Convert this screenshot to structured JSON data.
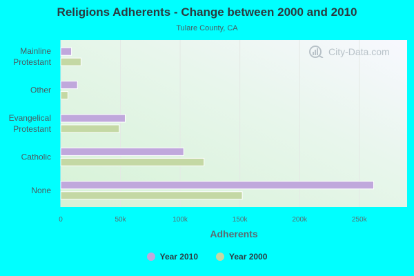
{
  "colors": {
    "background": "#00ffff",
    "series_2010": "#c0a8dc",
    "series_2000": "#c4d8a4",
    "grid": "#e4e8e4"
  },
  "watermark": {
    "text": "City-Data.com",
    "icon": "city-data-logo-icon"
  },
  "chart_data": {
    "type": "bar",
    "orientation": "horizontal",
    "title": "Religions Adherents - Change between 2000 and 2010",
    "subtitle": "Tulare County, CA",
    "xlabel": "Adherents",
    "ylabel": "",
    "categories": [
      "Mainline Protestant",
      "Other",
      "Evangelical Protestant",
      "Catholic",
      "None"
    ],
    "category_lines": [
      [
        "Mainline",
        "Protestant"
      ],
      [
        "Other"
      ],
      [
        "Evangelical",
        "Protestant"
      ],
      [
        "Catholic"
      ],
      [
        "None"
      ]
    ],
    "series": [
      {
        "name": "Year 2010",
        "values": [
          9000,
          14000,
          54000,
          103000,
          262000
        ]
      },
      {
        "name": "Year 2000",
        "values": [
          17000,
          6000,
          49000,
          120000,
          152000
        ]
      }
    ],
    "xticks": [
      0,
      50000,
      100000,
      150000,
      200000,
      250000
    ],
    "xtick_labels": [
      "0",
      "50k",
      "100k",
      "150k",
      "200k",
      "250k"
    ],
    "xlim": [
      0,
      290000
    ],
    "grid": true,
    "legend_position": "bottom"
  }
}
